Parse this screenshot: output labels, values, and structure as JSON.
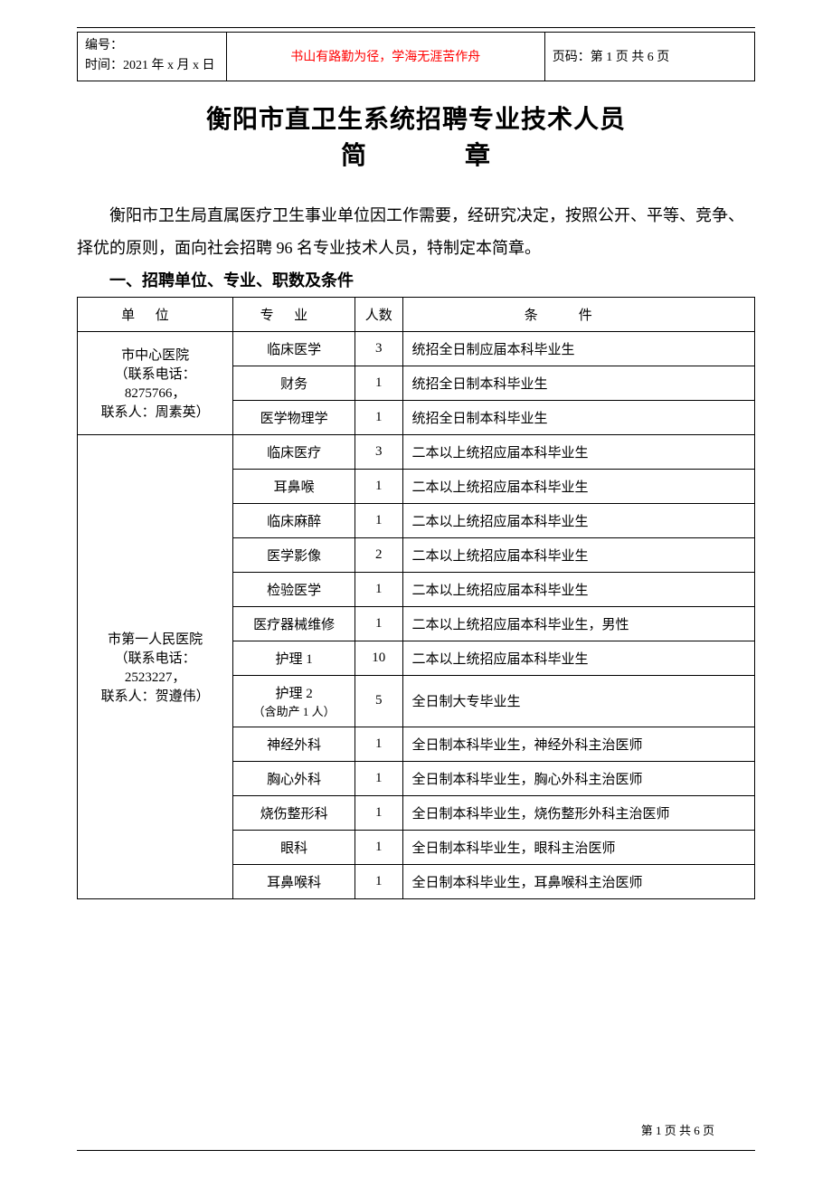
{
  "header": {
    "doc_id_label": "编号：",
    "time_label": "时间：2021 年 x 月 x 日",
    "motto": "书山有路勤为径，学海无涯苦作舟",
    "motto_color": "#ff0000",
    "page_label": "页码：第 1 页 共 6 页"
  },
  "title": {
    "line1": "衡阳市直卫生系统招聘专业技术人员",
    "line2_char1": "简",
    "line2_char2": "章"
  },
  "intro": "衡阳市卫生局直属医疗卫生事业单位因工作需要，经研究决定，按照公开、平等、竞争、择优的原则，面向社会招聘 96 名专业技术人员，特制定本简章。",
  "section1_heading": "一、招聘单位、专业、职数及条件",
  "table": {
    "headers": {
      "unit": "单位",
      "major": "专业",
      "count": "人数",
      "condition": "条件"
    },
    "unit1": {
      "name_line1": "市中心医院",
      "name_line2": "（联系电话：",
      "name_line3": "8275766，",
      "name_line4": "联系人：周素英）",
      "rows": [
        {
          "major": "临床医学",
          "count": "3",
          "cond": "统招全日制应届本科毕业生"
        },
        {
          "major": "财务",
          "count": "1",
          "cond": "统招全日制本科毕业生"
        },
        {
          "major": "医学物理学",
          "count": "1",
          "cond": "统招全日制本科毕业生"
        }
      ]
    },
    "unit2": {
      "name_line1": "市第一人民医院",
      "name_line2": "（联系电话：",
      "name_line3": "2523227，",
      "name_line4": "联系人：贺遵伟）",
      "rows": [
        {
          "major": "临床医疗",
          "count": "3",
          "cond": "二本以上统招应届本科毕业生"
        },
        {
          "major": "耳鼻喉",
          "count": "1",
          "cond": "二本以上统招应届本科毕业生"
        },
        {
          "major": "临床麻醉",
          "count": "1",
          "cond": "二本以上统招应届本科毕业生"
        },
        {
          "major": "医学影像",
          "count": "2",
          "cond": "二本以上统招应届本科毕业生"
        },
        {
          "major": "检验医学",
          "count": "1",
          "cond": "二本以上统招应届本科毕业生"
        },
        {
          "major": "医疗器械维修",
          "count": "1",
          "cond": "二本以上统招应届本科毕业生，男性"
        },
        {
          "major": "护理 1",
          "count": "10",
          "cond": "二本以上统招应届本科毕业生"
        },
        {
          "major": "护理 2",
          "major_sub": "（含助产 1 人）",
          "count": "5",
          "cond": "全日制大专毕业生"
        },
        {
          "major": "神经外科",
          "count": "1",
          "cond": "全日制本科毕业生，神经外科主治医师"
        },
        {
          "major": "胸心外科",
          "count": "1",
          "cond": "全日制本科毕业生，胸心外科主治医师"
        },
        {
          "major": "烧伤整形科",
          "count": "1",
          "cond": "全日制本科毕业生，烧伤整形外科主治医师"
        },
        {
          "major": "眼科",
          "count": "1",
          "cond": "全日制本科毕业生，眼科主治医师"
        },
        {
          "major": "耳鼻喉科",
          "count": "1",
          "cond": "全日制本科毕业生，耳鼻喉科主治医师"
        }
      ]
    }
  },
  "footer": {
    "page_text": "第 1 页 共 6 页"
  },
  "colors": {
    "text": "#000000",
    "accent": "#ff0000",
    "border": "#000000",
    "background": "#ffffff"
  }
}
